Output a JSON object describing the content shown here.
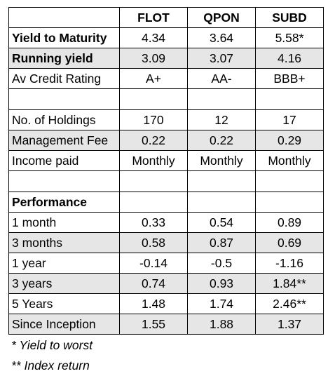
{
  "columns": [
    "FLOT",
    "QPON",
    "SUBD"
  ],
  "rows": [
    {
      "label": "Yield to Maturity",
      "values": [
        "4.34",
        "3.64",
        "5.58*"
      ]
    },
    {
      "label": "Running yield",
      "values": [
        "3.09",
        "3.07",
        "4.16"
      ]
    },
    {
      "label": "Av Credit Rating",
      "values": [
        "A+",
        "AA-",
        "BBB+"
      ]
    },
    {
      "label": "No. of Holdings",
      "values": [
        "170",
        "12",
        "17"
      ]
    },
    {
      "label": "Management Fee",
      "values": [
        "0.22",
        "0.22",
        "0.29"
      ]
    },
    {
      "label": "Income paid",
      "values": [
        "Monthly",
        "Monthly",
        "Monthly"
      ]
    },
    {
      "label": "Performance"
    },
    {
      "label": "1 month",
      "values": [
        "0.33",
        "0.54",
        "0.89"
      ]
    },
    {
      "label": "3 months",
      "values": [
        "0.58",
        "0.87",
        "0.69"
      ]
    },
    {
      "label": "1 year",
      "values": [
        "-0.14",
        "-0.5",
        "-1.16"
      ]
    },
    {
      "label": "3 years",
      "values": [
        "0.74",
        "0.93",
        "1.84**"
      ]
    },
    {
      "label": "5 Years",
      "values": [
        "1.48",
        "1.74",
        "2.46**"
      ]
    },
    {
      "label": "Since Inception",
      "values": [
        "1.55",
        "1.88",
        "1.37"
      ]
    }
  ],
  "footnotes": [
    "* Yield to worst",
    "** Index return"
  ],
  "colors": {
    "shade": "#e6e6e6",
    "border": "#000000"
  }
}
